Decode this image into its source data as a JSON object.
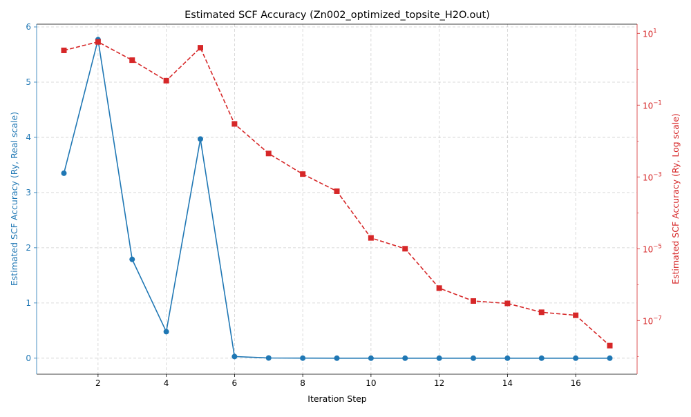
{
  "chart_data": {
    "type": "line",
    "title": "Estimated SCF Accuracy (Zn002_optimized_topsite_H2O.out)",
    "xlabel": "Iteration Step",
    "ylabel_left": "Estimated SCF Accuracy (Ry, Real scale)",
    "ylabel_right": "Estimated SCF Accuracy (Ry, Log scale)",
    "x": [
      1,
      2,
      3,
      4,
      5,
      6,
      7,
      8,
      9,
      10,
      11,
      12,
      13,
      14,
      15,
      16,
      17
    ],
    "xlim": [
      0.2,
      17.8
    ],
    "xticks": [
      2,
      4,
      6,
      8,
      10,
      12,
      14,
      16
    ],
    "ylim_left": [
      -0.29,
      6.05
    ],
    "yticks_left": [
      0,
      1,
      2,
      3,
      4,
      5,
      6
    ],
    "ylim_right": [
      3.2e-09,
      18
    ],
    "log_right": true,
    "yticks_right": [
      {
        "value": 10,
        "base": "10",
        "exp": "1"
      },
      {
        "value": 0.1,
        "base": "10",
        "exp": "−1"
      },
      {
        "value": 0.001,
        "base": "10",
        "exp": "−3"
      },
      {
        "value": 1e-05,
        "base": "10",
        "exp": "−5"
      },
      {
        "value": 1e-07,
        "base": "10",
        "exp": "−7"
      }
    ],
    "grid": true,
    "series": [
      {
        "axis": "left",
        "color": "#1f77b4",
        "style": "solid",
        "marker": "circle",
        "values": [
          3.35,
          5.77,
          1.79,
          0.48,
          3.97,
          0.03,
          0.004,
          0.0012,
          0.0004,
          2e-05,
          1e-05,
          8e-07,
          4e-07,
          3e-07,
          2e-07,
          1.5e-07,
          2e-08
        ]
      },
      {
        "axis": "right",
        "color": "#d62728",
        "style": "dashed",
        "marker": "square",
        "values": [
          3.35,
          5.77,
          1.79,
          0.48,
          3.97,
          0.03,
          0.0045,
          0.0012,
          0.0004,
          2e-05,
          1e-05,
          8e-07,
          3.5e-07,
          3e-07,
          1.7e-07,
          1.4e-07,
          2e-08
        ]
      }
    ]
  },
  "colors": {
    "left_axis": "#1f77b4",
    "right_axis": "#d62728",
    "grid": "#b0b0b0",
    "axis_line": "#000000"
  }
}
